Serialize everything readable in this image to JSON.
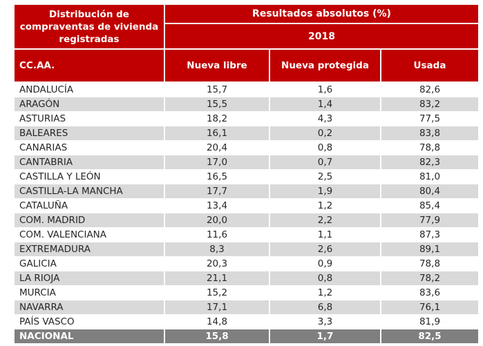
{
  "table": {
    "corner_header": "Distribución de compraventas de vivienda registradas",
    "group_header": "Resultados absolutos (%)",
    "year_header": "2018",
    "columns": [
      "CC.AA.",
      "Nueva libre",
      "Nueva protegida",
      "Usada"
    ],
    "rows": [
      [
        "ANDALUCÍA",
        "15,7",
        "1,6",
        "82,6"
      ],
      [
        "ARAGÓN",
        "15,5",
        "1,4",
        "83,2"
      ],
      [
        "ASTURIAS",
        "18,2",
        "4,3",
        "77,5"
      ],
      [
        "BALEARES",
        "16,1",
        "0,2",
        "83,8"
      ],
      [
        "CANARIAS",
        "20,4",
        "0,8",
        "78,8"
      ],
      [
        "CANTABRIA",
        "17,0",
        "0,7",
        "82,3"
      ],
      [
        "CASTILLA Y LEÓN",
        "16,5",
        "2,5",
        "81,0"
      ],
      [
        "CASTILLA-LA MANCHA",
        "17,7",
        "1,9",
        "80,4"
      ],
      [
        "CATALUÑA",
        "13,4",
        "1,2",
        "85,4"
      ],
      [
        "COM. MADRID",
        "20,0",
        "2,2",
        "77,9"
      ],
      [
        "COM. VALENCIANA",
        "11,6",
        "1,1",
        "87,3"
      ],
      [
        "EXTREMADURA",
        "8,3",
        "2,6",
        "89,1"
      ],
      [
        "GALICIA",
        "20,3",
        "0,9",
        "78,8"
      ],
      [
        "LA RIOJA",
        "21,1",
        "0,8",
        "78,2"
      ],
      [
        "MURCIA",
        "15,2",
        "1,2",
        "83,6"
      ],
      [
        "NAVARRA",
        "17,1",
        "6,8",
        "76,1"
      ],
      [
        "PAÍS VASCO",
        "14,8",
        "3,3",
        "81,9"
      ]
    ],
    "total_row": [
      "NACIONAL",
      "15,8",
      "1,7",
      "82,5"
    ],
    "colors": {
      "header_bg": "#C00000",
      "header_text": "#FFFFFF",
      "stripe_bg": "#D9D9D9",
      "total_bg": "#7F7F7F",
      "total_text": "#FFFFFF",
      "body_text": "#262626"
    }
  },
  "chart_data": {
    "type": "table",
    "title": "Distribución de compraventas de vivienda registradas - Resultados absolutos (%) - 2018",
    "categories": [
      "ANDALUCÍA",
      "ARAGÓN",
      "ASTURIAS",
      "BALEARES",
      "CANARIAS",
      "CANTABRIA",
      "CASTILLA Y LEÓN",
      "CASTILLA-LA MANCHA",
      "CATALUÑA",
      "COM. MADRID",
      "COM. VALENCIANA",
      "EXTREMADURA",
      "GALICIA",
      "LA RIOJA",
      "MURCIA",
      "NAVARRA",
      "PAÍS VASCO",
      "NACIONAL"
    ],
    "series": [
      {
        "name": "Nueva libre",
        "values": [
          15.7,
          15.5,
          18.2,
          16.1,
          20.4,
          17.0,
          16.5,
          17.7,
          13.4,
          20.0,
          11.6,
          8.3,
          20.3,
          21.1,
          15.2,
          17.1,
          14.8,
          15.8
        ]
      },
      {
        "name": "Nueva protegida",
        "values": [
          1.6,
          1.4,
          4.3,
          0.2,
          0.8,
          0.7,
          2.5,
          1.9,
          1.2,
          2.2,
          1.1,
          2.6,
          0.9,
          0.8,
          1.2,
          6.8,
          3.3,
          1.7
        ]
      },
      {
        "name": "Usada",
        "values": [
          82.6,
          83.2,
          77.5,
          83.8,
          78.8,
          82.3,
          81.0,
          80.4,
          85.4,
          77.9,
          87.3,
          89.1,
          78.8,
          78.2,
          83.6,
          76.1,
          81.9,
          82.5
        ]
      }
    ],
    "unit": "%",
    "decimal_separator": ","
  }
}
